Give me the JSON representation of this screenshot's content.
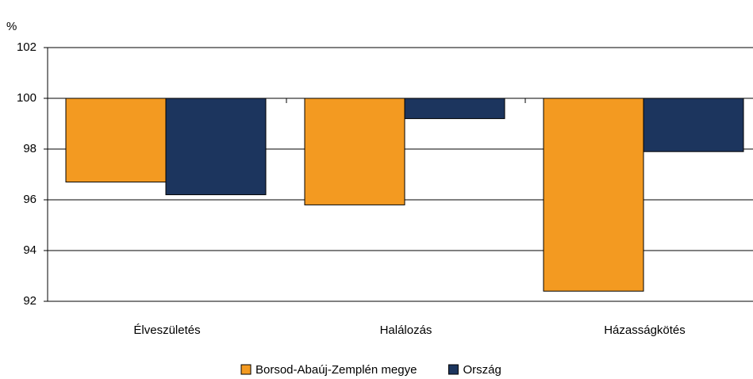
{
  "chart_data": {
    "type": "bar",
    "y_axis_label": "%",
    "categories": [
      "Élveszületés",
      "Halálozás",
      "Házasságkötés"
    ],
    "series": [
      {
        "name": "Borsod-Abaúj-Zemplén megye",
        "color": "#f39a21",
        "values": [
          96.7,
          95.8,
          92.4
        ]
      },
      {
        "name": "Ország",
        "color": "#1c355e",
        "values": [
          96.2,
          99.2,
          97.9
        ]
      }
    ],
    "ylim": [
      92,
      102
    ],
    "yticks": [
      92,
      94,
      96,
      98,
      100,
      102
    ],
    "x_axis_at": 100,
    "grid": true
  }
}
